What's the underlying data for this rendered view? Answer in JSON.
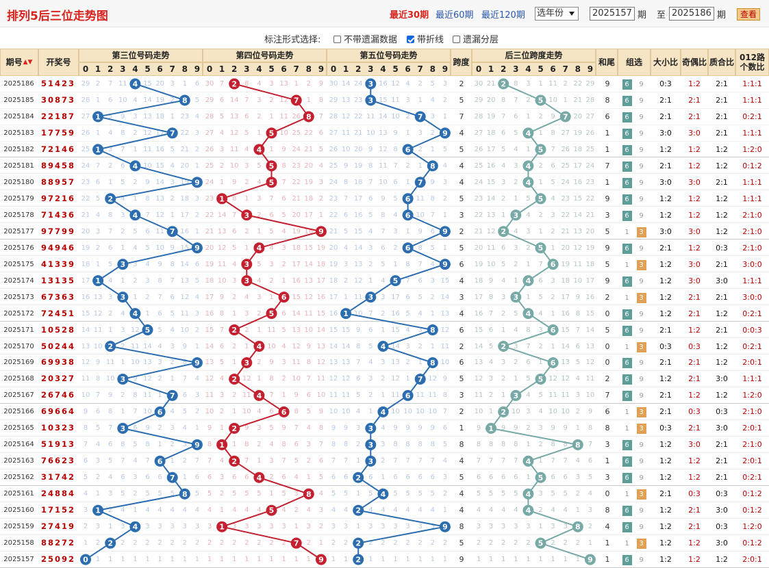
{
  "header": {
    "title": "排列5后三位走势图",
    "period_links": [
      "最近30期",
      "最近60期",
      "最近120期"
    ],
    "active_link": "最近30期",
    "year_select": "选年份",
    "from_value": "2025157",
    "to_value": "2025186",
    "label_qi": "期",
    "label_zhi": "至",
    "query_button": "查看"
  },
  "options": {
    "label": "标注形式选择:",
    "items": [
      {
        "label": "不带遗漏数据",
        "checked": false
      },
      {
        "label": "带折线",
        "checked": true
      },
      {
        "label": "遗漏分层",
        "checked": false
      }
    ]
  },
  "columns": {
    "period": "期号",
    "draw": "开奖号",
    "third": "第三位号码走势",
    "fourth": "第四位号码走势",
    "fifth": "第五位号码走势",
    "span": "跨度",
    "span_trend": "后三位跨度走势",
    "sum_tail": "和尾",
    "group": "组选",
    "big_small": "大小比",
    "odd_even": "奇偶比",
    "prime": "质合比",
    "road": "012路个数比",
    "digits": [
      "0",
      "1",
      "2",
      "3",
      "4",
      "5",
      "6",
      "7",
      "8",
      "9"
    ]
  },
  "colors": {
    "third": "#2c6db0",
    "fourth": "#c4202f",
    "fifth": "#2c6db0",
    "span": "#77a9a7",
    "title": "#d9241e"
  },
  "rows": [
    {
      "p": "2025186",
      "n": "51423",
      "a": 4,
      "b": 2,
      "c": 3,
      "s": 2,
      "t": "9",
      "g": "组6",
      "dx": "0:3",
      "jo": "1:2",
      "zh": "2:1",
      "lu": "1:1:1"
    },
    {
      "p": "2025185",
      "n": "30873",
      "a": 8,
      "b": 7,
      "c": 3,
      "s": 5,
      "t": "8",
      "g": "组6",
      "dx": "2:1",
      "jo": "2:1",
      "zh": "2:1",
      "lu": "1:1:1"
    },
    {
      "p": "2025184",
      "n": "22187",
      "a": 1,
      "b": 8,
      "c": 7,
      "s": 7,
      "t": "6",
      "g": "组6",
      "dx": "2:1",
      "jo": "2:1",
      "zh": "2:1",
      "lu": "0:2:1"
    },
    {
      "p": "2025183",
      "n": "17759",
      "a": 7,
      "b": 5,
      "c": 9,
      "s": 4,
      "t": "1",
      "g": "组6",
      "dx": "3:0",
      "jo": "3:0",
      "zh": "2:1",
      "lu": "1:1:1"
    },
    {
      "p": "2025182",
      "n": "72146",
      "a": 1,
      "b": 4,
      "c": 6,
      "s": 5,
      "t": "1",
      "g": "组6",
      "dx": "1:2",
      "jo": "1:2",
      "zh": "1:2",
      "lu": "1:2:0"
    },
    {
      "p": "2025181",
      "n": "89458",
      "a": 4,
      "b": 5,
      "c": 8,
      "s": 4,
      "t": "7",
      "g": "组6",
      "dx": "2:1",
      "jo": "1:2",
      "zh": "1:2",
      "lu": "0:1:2"
    },
    {
      "p": "2025180",
      "n": "88957",
      "a": 9,
      "b": 5,
      "c": 7,
      "s": 4,
      "t": "1",
      "g": "组6",
      "dx": "3:0",
      "jo": "3:0",
      "zh": "2:1",
      "lu": "1:1:1"
    },
    {
      "p": "2025179",
      "n": "97216",
      "a": 2,
      "b": 1,
      "c": 6,
      "s": 5,
      "t": "9",
      "g": "组6",
      "dx": "1:2",
      "jo": "1:2",
      "zh": "1:2",
      "lu": "1:1:1"
    },
    {
      "p": "2025178",
      "n": "71436",
      "a": 4,
      "b": 3,
      "c": 6,
      "s": 3,
      "t": "3",
      "g": "组6",
      "dx": "1:2",
      "jo": "1:2",
      "zh": "1:2",
      "lu": "2:1:0"
    },
    {
      "p": "2025177",
      "n": "97799",
      "a": 7,
      "b": 9,
      "c": 9,
      "s": 2,
      "t": "5",
      "g": "组3",
      "dx": "3:0",
      "jo": "3:0",
      "zh": "1:2",
      "lu": "2:1:0"
    },
    {
      "p": "2025176",
      "n": "94946",
      "a": 9,
      "b": 4,
      "c": 6,
      "s": 5,
      "t": "9",
      "g": "组6",
      "dx": "2:1",
      "jo": "1:2",
      "zh": "0:3",
      "lu": "2:1:0"
    },
    {
      "p": "2025175",
      "n": "41339",
      "a": 3,
      "b": 3,
      "c": 9,
      "s": 6,
      "t": "5",
      "g": "组3",
      "dx": "1:2",
      "jo": "3:0",
      "zh": "2:1",
      "lu": "3:0:0"
    },
    {
      "p": "2025174",
      "n": "13135",
      "a": 1,
      "b": 3,
      "c": 5,
      "s": 4,
      "t": "9",
      "g": "组6",
      "dx": "1:2",
      "jo": "3:0",
      "zh": "3:0",
      "lu": "1:1:1"
    },
    {
      "p": "2025173",
      "n": "67363",
      "a": 3,
      "b": 6,
      "c": 3,
      "s": 3,
      "t": "2",
      "g": "组3",
      "dx": "1:2",
      "jo": "2:1",
      "zh": "2:1",
      "lu": "3:0:0"
    },
    {
      "p": "2025172",
      "n": "72451",
      "a": 4,
      "b": 5,
      "c": 1,
      "s": 4,
      "t": "0",
      "g": "组6",
      "dx": "1:2",
      "jo": "2:1",
      "zh": "1:2",
      "lu": "0:2:1"
    },
    {
      "p": "2025171",
      "n": "10528",
      "a": 5,
      "b": 2,
      "c": 8,
      "s": 6,
      "t": "5",
      "g": "组6",
      "dx": "2:1",
      "jo": "1:2",
      "zh": "2:1",
      "lu": "0:0:3"
    },
    {
      "p": "2025170",
      "n": "50244",
      "a": 2,
      "b": 4,
      "c": 4,
      "s": 2,
      "t": "0",
      "g": "组3",
      "dx": "0:3",
      "jo": "0:3",
      "zh": "1:2",
      "lu": "0:2:1"
    },
    {
      "p": "2025169",
      "n": "69938",
      "a": 9,
      "b": 3,
      "c": 8,
      "s": 6,
      "t": "0",
      "g": "组6",
      "dx": "2:1",
      "jo": "2:1",
      "zh": "1:2",
      "lu": "2:0:1"
    },
    {
      "p": "2025168",
      "n": "20327",
      "a": 3,
      "b": 2,
      "c": 7,
      "s": 5,
      "t": "2",
      "g": "组6",
      "dx": "1:2",
      "jo": "2:1",
      "zh": "3:0",
      "lu": "1:1:1"
    },
    {
      "p": "2025167",
      "n": "26746",
      "a": 7,
      "b": 4,
      "c": 6,
      "s": 3,
      "t": "7",
      "g": "组6",
      "dx": "2:1",
      "jo": "1:2",
      "zh": "1:2",
      "lu": "1:2:0"
    },
    {
      "p": "2025166",
      "n": "69664",
      "a": 6,
      "b": 6,
      "c": 4,
      "s": 2,
      "t": "6",
      "g": "组3",
      "dx": "2:1",
      "jo": "0:3",
      "zh": "0:3",
      "lu": "2:1:0"
    },
    {
      "p": "2025165",
      "n": "10323",
      "a": 3,
      "b": 2,
      "c": 3,
      "s": 1,
      "t": "8",
      "g": "组3",
      "dx": "0:3",
      "jo": "2:1",
      "zh": "3:0",
      "lu": "2:0:1"
    },
    {
      "p": "2025164",
      "n": "51913",
      "a": 9,
      "b": 1,
      "c": 3,
      "s": 8,
      "t": "3",
      "g": "组6",
      "dx": "1:2",
      "jo": "3:0",
      "zh": "2:1",
      "lu": "2:1:0"
    },
    {
      "p": "2025163",
      "n": "76623",
      "a": 6,
      "b": 2,
      "c": 3,
      "s": 4,
      "t": "1",
      "g": "组6",
      "dx": "1:2",
      "jo": "1:2",
      "zh": "2:1",
      "lu": "2:0:1"
    },
    {
      "p": "2025162",
      "n": "31742",
      "a": 7,
      "b": 4,
      "c": 2,
      "s": 5,
      "t": "3",
      "g": "组6",
      "dx": "1:2",
      "jo": "1:2",
      "zh": "2:1",
      "lu": "0:2:1"
    },
    {
      "p": "2025161",
      "n": "24884",
      "a": 8,
      "b": 8,
      "c": 4,
      "s": 4,
      "t": "0",
      "g": "组3",
      "dx": "2:1",
      "jo": "0:3",
      "zh": "0:3",
      "lu": "0:1:2"
    },
    {
      "p": "2025160",
      "n": "17152",
      "a": 1,
      "b": 5,
      "c": 2,
      "s": 4,
      "t": "8",
      "g": "组6",
      "dx": "1:2",
      "jo": "2:1",
      "zh": "3:0",
      "lu": "0:1:2"
    },
    {
      "p": "2025159",
      "n": "27419",
      "a": 4,
      "b": 1,
      "c": 9,
      "s": 8,
      "t": "4",
      "g": "组6",
      "dx": "1:2",
      "jo": "2:1",
      "zh": "0:3",
      "lu": "1:2:0"
    },
    {
      "p": "2025158",
      "n": "88272",
      "a": 2,
      "b": 7,
      "c": 2,
      "s": 5,
      "t": "1",
      "g": "组3",
      "dx": "1:2",
      "jo": "1:2",
      "zh": "3:0",
      "lu": "0:1:2"
    },
    {
      "p": "2025157",
      "n": "25092",
      "a": 0,
      "b": 9,
      "c": 2,
      "s": 9,
      "t": "1",
      "g": "组6",
      "dx": "1:2",
      "jo": "1:2",
      "zh": "1:2",
      "lu": "2:0:1"
    }
  ]
}
